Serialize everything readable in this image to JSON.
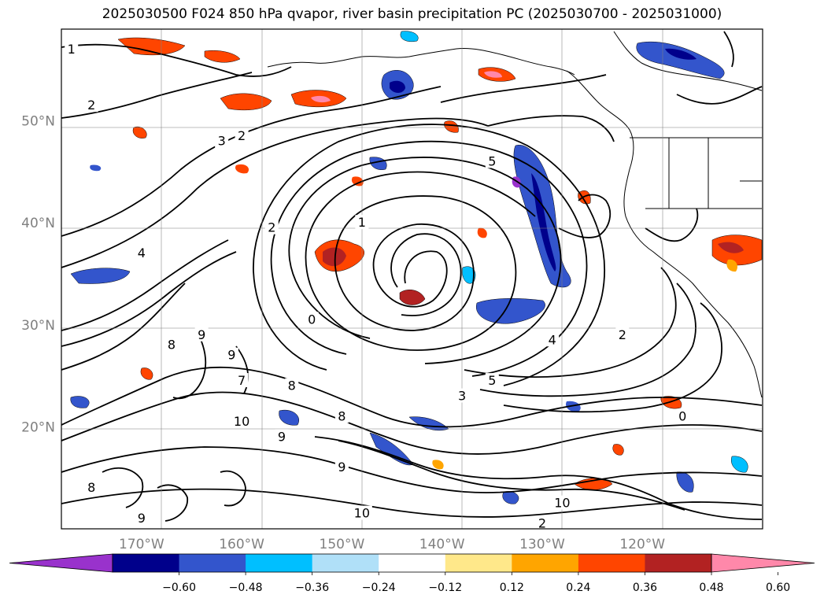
{
  "title": "2025030500 F024 850 hPa qvapor, river basin precipitation PC (2025030700 - 2025031000)",
  "map": {
    "lat_ticks": [
      {
        "value": 50,
        "label": "50°N"
      },
      {
        "value": 40,
        "label": "40°N"
      },
      {
        "value": 30,
        "label": "30°N"
      },
      {
        "value": 20,
        "label": "20°N"
      }
    ],
    "lon_ticks": [
      {
        "value": -170,
        "label": "170°W"
      },
      {
        "value": -160,
        "label": "160°W"
      },
      {
        "value": -150,
        "label": "150°W"
      },
      {
        "value": -140,
        "label": "140°W"
      },
      {
        "value": -130,
        "label": "130°W"
      },
      {
        "value": -120,
        "label": "120°W"
      }
    ],
    "lon_range": [
      -178,
      -108
    ],
    "lat_range": [
      10,
      59
    ],
    "grid": true,
    "tick_label_color": "#808080",
    "contour_field": "850 hPa qvapor",
    "contour_color": "#000000",
    "filled_field": "river basin precipitation PC",
    "low_center": {
      "lon": -147,
      "lat": 35
    }
  },
  "colorbar": {
    "orientation": "horizontal",
    "extend": "both",
    "ticks": [
      "−0.60",
      "−0.48",
      "−0.36",
      "−0.24",
      "−0.12",
      "0.12",
      "0.24",
      "0.36",
      "0.48",
      "0.60"
    ],
    "colors": [
      "#9932cc",
      "#00008b",
      "#3355cc",
      "#00bfff",
      "#b0e0f8",
      "#ffffff",
      "#ffe88a",
      "#ffa500",
      "#ff4500",
      "#b22222",
      "#ff88aa"
    ]
  },
  "contour_labels": [
    {
      "text": "1",
      "lon": -177,
      "lat": 57
    },
    {
      "text": "2",
      "lon": -175,
      "lat": 51.5
    },
    {
      "text": "2",
      "lon": -160,
      "lat": 48.5
    },
    {
      "text": "3",
      "lon": -162,
      "lat": 48
    },
    {
      "text": "5",
      "lon": -135,
      "lat": 46
    },
    {
      "text": "1",
      "lon": -148,
      "lat": 40
    },
    {
      "text": "2",
      "lon": -157,
      "lat": 39.5
    },
    {
      "text": "4",
      "lon": -170,
      "lat": 37
    },
    {
      "text": "0",
      "lon": -153,
      "lat": 30.5
    },
    {
      "text": "9",
      "lon": -164,
      "lat": 29
    },
    {
      "text": "8",
      "lon": -167,
      "lat": 28
    },
    {
      "text": "9",
      "lon": -161,
      "lat": 27
    },
    {
      "text": "7",
      "lon": -160,
      "lat": 24.5
    },
    {
      "text": "8",
      "lon": -155,
      "lat": 24
    },
    {
      "text": "10",
      "lon": -160,
      "lat": 20.5
    },
    {
      "text": "9",
      "lon": -156,
      "lat": 19
    },
    {
      "text": "8",
      "lon": -150,
      "lat": 21
    },
    {
      "text": "10",
      "lon": -148,
      "lat": 11.5
    },
    {
      "text": "9",
      "lon": -150,
      "lat": 16
    },
    {
      "text": "5",
      "lon": -135,
      "lat": 24.5
    },
    {
      "text": "3",
      "lon": -138,
      "lat": 23
    },
    {
      "text": "4",
      "lon": -129,
      "lat": 28.5
    },
    {
      "text": "2",
      "lon": -122,
      "lat": 29
    },
    {
      "text": "0",
      "lon": -116,
      "lat": 21
    },
    {
      "text": "10",
      "lon": -128,
      "lat": 12.5
    },
    {
      "text": "2",
      "lon": -130,
      "lat": 10.5
    },
    {
      "text": "8",
      "lon": -175,
      "lat": 14
    },
    {
      "text": "9",
      "lon": -170,
      "lat": 11
    }
  ]
}
